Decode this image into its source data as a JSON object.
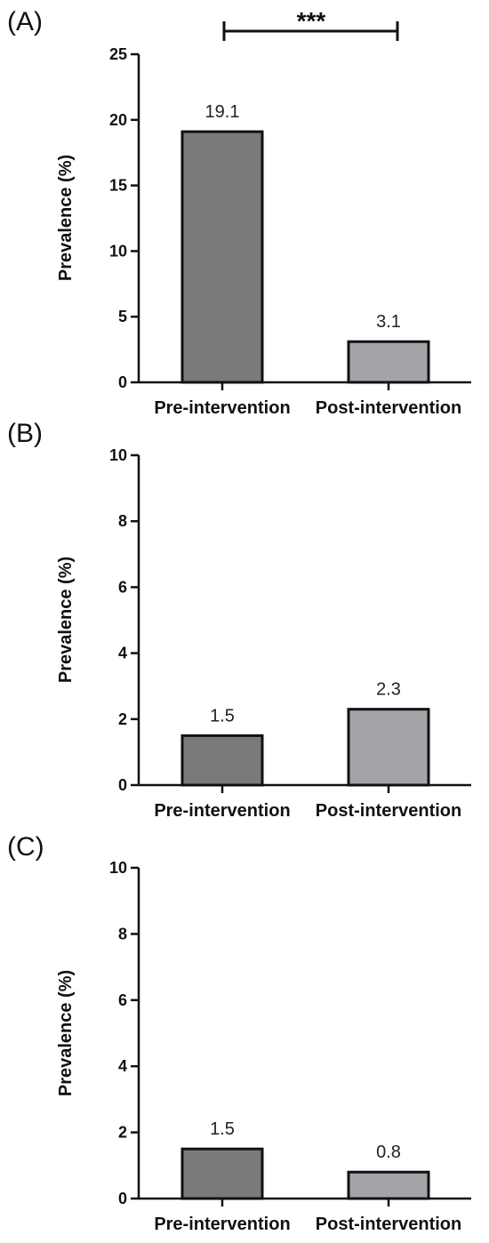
{
  "chart_data": [
    {
      "panel": "(A)",
      "type": "bar",
      "categories": [
        "Pre-intervention",
        "Post-intervention"
      ],
      "values": [
        19.1,
        3.1
      ],
      "data_labels": [
        "19.1",
        "3.1"
      ],
      "ylabel": "Prevalence (%)",
      "xlabel": "",
      "ylim": [
        0,
        25
      ],
      "yticks": [
        0,
        5,
        10,
        15,
        20,
        25
      ],
      "significance": "***",
      "colors": [
        "#7a7a7a",
        "#a3a3a8"
      ]
    },
    {
      "panel": "(B)",
      "type": "bar",
      "categories": [
        "Pre-intervention",
        "Post-intervention"
      ],
      "values": [
        1.5,
        2.3
      ],
      "data_labels": [
        "1.5",
        "2.3"
      ],
      "ylabel": "Prevalence (%)",
      "xlabel": "",
      "ylim": [
        0,
        10
      ],
      "yticks": [
        0,
        2,
        4,
        6,
        8,
        10
      ],
      "colors": [
        "#7a7a7a",
        "#a3a3a8"
      ]
    },
    {
      "panel": "(C)",
      "type": "bar",
      "categories": [
        "Pre-intervention",
        "Post-intervention"
      ],
      "values": [
        1.5,
        0.8
      ],
      "data_labels": [
        "1.5",
        "0.8"
      ],
      "ylabel": "Prevalence (%)",
      "xlabel": "",
      "ylim": [
        0,
        10
      ],
      "yticks": [
        0,
        2,
        4,
        6,
        8,
        10
      ],
      "colors": [
        "#7a7a7a",
        "#a3a3a8"
      ]
    }
  ]
}
